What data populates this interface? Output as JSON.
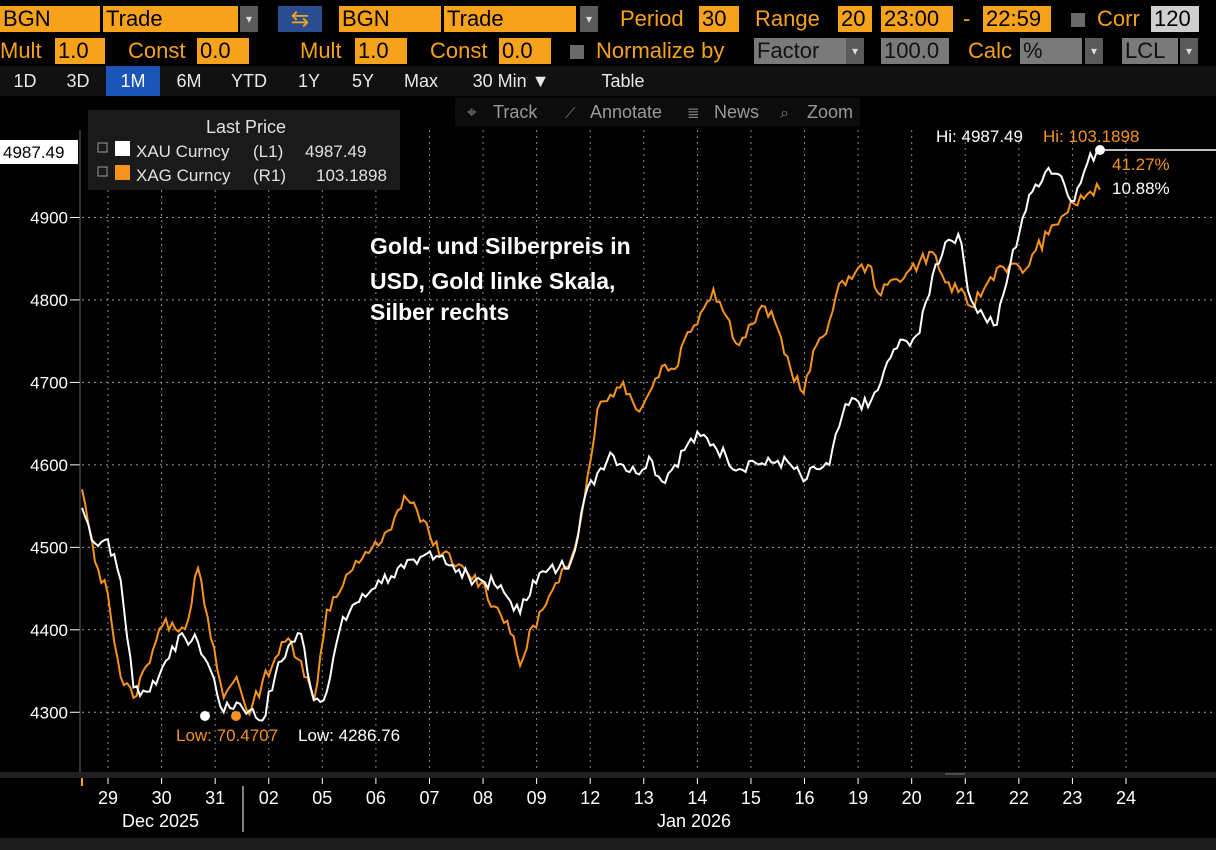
{
  "toolbar": {
    "source_left": "BGN",
    "field_left": "Trade",
    "swap_icon": "swap-arrows-icon",
    "source_right": "BGN",
    "field_right": "Trade",
    "period_label": "Period",
    "period_value": "30",
    "range_label": "Range",
    "range_value": "20",
    "time_from": "23:00",
    "time_sep": "-",
    "time_to": "22:59",
    "corr_label": "Corr",
    "corr_value": "120",
    "mult_label_left": "Mult",
    "mult_value_left": "1.0",
    "const_label_left": "Const",
    "const_value_left": "0.0",
    "mult_label_right": "Mult",
    "mult_value_right": "1.0",
    "const_label_right": "Const",
    "const_value_right": "0.0",
    "normalize_label": "Normalize by",
    "normalize_value": "Factor",
    "factor_value": "100.0",
    "calc_label": "Calc",
    "calc_value": "%",
    "currency_value": "LCL"
  },
  "timebar": {
    "buttons": [
      "1D",
      "3D",
      "1M",
      "6M",
      "YTD",
      "1Y",
      "5Y",
      "Max"
    ],
    "active": "1M",
    "interval": "30 Min ▼",
    "table": "Table"
  },
  "chart_tools": {
    "track": "Track",
    "annotate": "Annotate",
    "news": "News",
    "zoom": "Zoom"
  },
  "legend": {
    "header": "Last Price",
    "items": [
      {
        "label": "XAU Curncy",
        "axis": "(L1)",
        "value": "4987.49",
        "color": "#ffffff"
      },
      {
        "label": "XAG Curncy",
        "axis": "(R1)",
        "value": "103.1898",
        "color": "#f6921e"
      }
    ]
  },
  "annotation": {
    "line1": "Gold- und Silberpreis in",
    "line2": "USD, Gold linke Skala,",
    "line3": "Silber rechts"
  },
  "markers": {
    "hi_gold": "Hi: 4987.49",
    "hi_silver": "Hi: 103.1898",
    "pct_silver": "41.27%",
    "pct_gold": "10.88%",
    "low_silver": "Low: 70.4707",
    "low_gold": "Low: 4286.76",
    "last_price_tag": "4987.49"
  },
  "chart_data": {
    "type": "line",
    "title": "",
    "y_left_ticks": [
      4300,
      4400,
      4500,
      4600,
      4700,
      4800,
      4900
    ],
    "y_left_range": [
      4230,
      5000
    ],
    "y_right_range": [
      67.0,
      106.6
    ],
    "x_ticks": [
      "29",
      "30",
      "31",
      "02",
      "05",
      "06",
      "07",
      "08",
      "09",
      "12",
      "13",
      "14",
      "15",
      "16",
      "19",
      "20",
      "21",
      "22",
      "23",
      "24"
    ],
    "x_month_labels": [
      "Dec 2025",
      "Jan 2026"
    ],
    "series": [
      {
        "name": "XAU Curncy",
        "axis": "left",
        "color": "#ffffff",
        "values": [
          4548,
          4505,
          4510,
          4460,
          4330,
          4325,
          4345,
          4380,
          4390,
          4385,
          4350,
          4300,
          4312,
          4302,
          4290,
          4345,
          4380,
          4395,
          4315,
          4325,
          4400,
          4430,
          4440,
          4460,
          4465,
          4475,
          4480,
          4495,
          4490,
          4470,
          4465,
          4460,
          4455,
          4440,
          4420,
          4460,
          4470,
          4475,
          4485,
          4560,
          4590,
          4615,
          4600,
          4590,
          4610,
          4580,
          4600,
          4625,
          4635,
          4625,
          4610,
          4595,
          4605,
          4600,
          4605,
          4600,
          4580,
          4595,
          4600,
          4660,
          4680,
          4670,
          4700,
          4740,
          4750,
          4760,
          4830,
          4870,
          4880,
          4800,
          4780,
          4770,
          4840,
          4900,
          4940,
          4960,
          4950,
          4920,
          4965,
          4987
        ]
      },
      {
        "name": "XAG Curncy",
        "axis": "right",
        "color": "#f6921e",
        "values": [
          84.5,
          80.0,
          78.0,
          72.8,
          71.5,
          73.5,
          75.8,
          76.2,
          75.8,
          79.6,
          75.2,
          71.5,
          72.8,
          70.47,
          72.5,
          74.0,
          75.2,
          73.8,
          71.3,
          77.0,
          78.1,
          79.5,
          80.6,
          81.0,
          82.0,
          84.1,
          83.2,
          81.6,
          80.5,
          79.7,
          79.2,
          78.7,
          77.2,
          76.3,
          73.5,
          76.0,
          77.3,
          78.7,
          80.3,
          84.0,
          89.5,
          90.4,
          91.2,
          89.5,
          90.5,
          92.2,
          92.0,
          94.3,
          95.5,
          97.0,
          95.3,
          93.5,
          94.8,
          95.9,
          94.5,
          92.0,
          90.5,
          93.5,
          95.0,
          97.5,
          98.0,
          98.5,
          96.6,
          97.6,
          98.0,
          98.7,
          99.3,
          97.4,
          96.8,
          95.9,
          97.0,
          98.3,
          98.5,
          98.0,
          99.4,
          100.4,
          101.5,
          102.3,
          102.9,
          103.1898
        ]
      }
    ]
  }
}
